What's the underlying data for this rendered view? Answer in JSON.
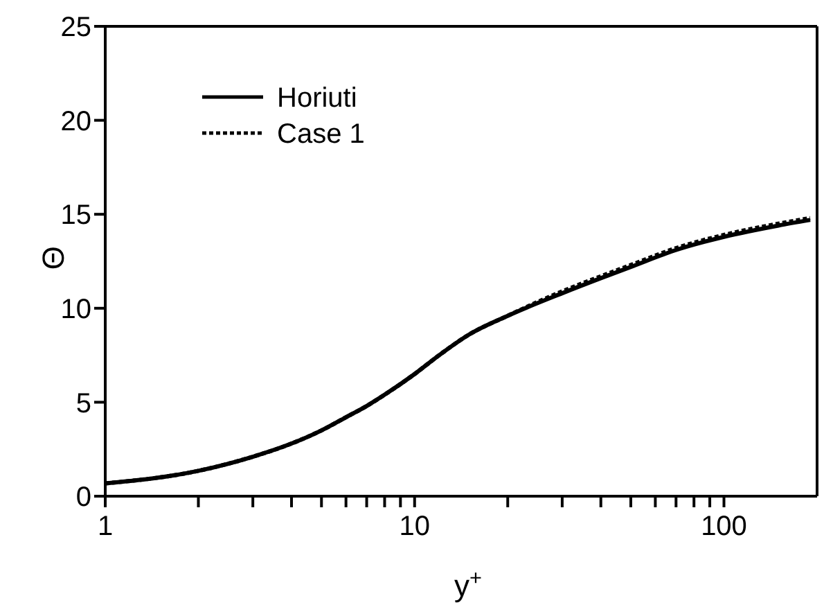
{
  "chart_data": {
    "type": "line",
    "xlabel": "y$^{+}$",
    "ylabel": "Θ",
    "log": "x",
    "xlim": [
      1,
      200
    ],
    "xticks": [
      1,
      {
        "value": 2,
        "label": null
      },
      {
        "value": 3,
        "label": null
      },
      {
        "value": 4,
        "label": null
      },
      {
        "value": 5,
        "label": null
      },
      {
        "value": 6,
        "label": null
      },
      {
        "value": 7,
        "label": null
      },
      {
        "value": 8,
        "label": null
      },
      {
        "value": 9,
        "label": null
      },
      10,
      {
        "value": 20,
        "label": null
      },
      {
        "value": 30,
        "label": null
      },
      {
        "value": 40,
        "label": null
      },
      {
        "value": 50,
        "label": null
      },
      {
        "value": 60,
        "label": null
      },
      {
        "value": 70,
        "label": null
      },
      {
        "value": 80,
        "label": null
      },
      {
        "value": 90,
        "label": null
      },
      100
    ],
    "ylim": [
      0,
      25
    ],
    "yticks": [
      0,
      5,
      10,
      15,
      20,
      25
    ],
    "legend": "top left",
    "marker": "none",
    "x": [
      1,
      2,
      3,
      4,
      5,
      6,
      7,
      8,
      10,
      12,
      15,
      20,
      30,
      40,
      50,
      70,
      100,
      150,
      190
    ],
    "series": [
      {
        "name": "Horiuti",
        "color": "#000000",
        "line_style": "solid",
        "values": [
          0.68,
          1.35,
          2.1,
          2.8,
          3.5,
          4.2,
          4.8,
          5.4,
          6.5,
          7.5,
          8.6,
          9.6,
          10.8,
          11.6,
          12.2,
          13.1,
          13.8,
          14.4,
          14.7
        ]
      },
      {
        "name": "Case 1",
        "color": "#000000",
        "line_style": "dotted",
        "values": [
          0.68,
          1.35,
          2.1,
          2.8,
          3.5,
          4.2,
          4.8,
          5.4,
          6.5,
          7.5,
          8.6,
          9.6,
          10.9,
          11.7,
          12.3,
          13.2,
          13.9,
          14.5,
          14.8
        ]
      }
    ]
  }
}
